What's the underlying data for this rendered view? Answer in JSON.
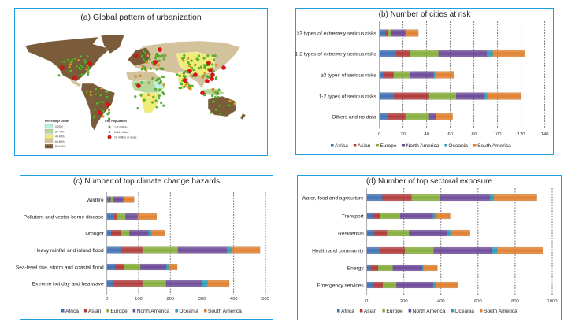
{
  "panel_a": {
    "title": "(a) Global pattern of urbanization",
    "legend_urban": {
      "title": "Percentage Urban",
      "items": [
        {
          "label": "0-20%",
          "color": "#b8f0e6"
        },
        {
          "label": "20-40%",
          "color": "#b5d79a"
        },
        {
          "label": "40-60%",
          "color": "#f0ec7a"
        },
        {
          "label": "60-80%",
          "color": "#d4c29c"
        },
        {
          "label": "80-100%",
          "color": "#7a5c3a"
        }
      ]
    },
    "legend_population": {
      "title": "City Population",
      "items": [
        {
          "label": "1-5 million",
          "color": "#5cc02a"
        },
        {
          "label": "5-10 million",
          "color": "#f0a020"
        },
        {
          "label": "10 million or more",
          "color": "#e81010"
        }
      ]
    }
  },
  "series_colors": {
    "Africa": "#3f6fb3",
    "Asian": "#b03a3a",
    "Europe": "#86ad3c",
    "North America": "#6d4a98",
    "Oceania": "#2f9bb5",
    "South America": "#e07f2f"
  },
  "chart_data": [
    {
      "id": "b",
      "type": "bar",
      "orientation": "horizontal",
      "stacked": true,
      "title": "(b) Number of cities at risk",
      "categories": [
        "≥3 types of extremely serious risks",
        "1-2 types of extremely serious risks",
        "≥3 types of serious risks",
        "1-2 types of serious risks",
        "Others and no data"
      ],
      "xlim": [
        0,
        140
      ],
      "xticks": [
        0,
        20,
        40,
        60,
        80,
        100,
        120,
        140
      ],
      "grid": "vertical dashed",
      "legend": "bottom",
      "series": [
        {
          "name": "Africa",
          "values": [
            5,
            14,
            3,
            12,
            7
          ]
        },
        {
          "name": "Asian",
          "values": [
            2,
            12,
            9,
            30,
            15
          ]
        },
        {
          "name": "Europe",
          "values": [
            3,
            24,
            14,
            23,
            20
          ]
        },
        {
          "name": "North America",
          "values": [
            12,
            41,
            20,
            24,
            6
          ]
        },
        {
          "name": "Oceania",
          "values": [
            0,
            5,
            1,
            2,
            0
          ]
        },
        {
          "name": "South America",
          "values": [
            11,
            27,
            16,
            29,
            14
          ]
        }
      ]
    },
    {
      "id": "c",
      "type": "bar",
      "orientation": "horizontal",
      "stacked": true,
      "title": "(c) Number of top climate change hazards",
      "categories": [
        "Wildfire",
        "Pollutant and vector-borne disease",
        "Drought",
        "Heavy rainfall and inland flood",
        "Sea-level rise, storm and coastal flood",
        "Extreme hot day and heatwave"
      ],
      "xlim": [
        0,
        500
      ],
      "xticks": [
        0,
        100,
        200,
        300,
        400,
        500
      ],
      "grid": "vertical dashed",
      "legend": "bottom",
      "series": [
        {
          "name": "Africa",
          "values": [
            9,
            21,
            14,
            48,
            26,
            18
          ]
        },
        {
          "name": "Asian",
          "values": [
            3,
            10,
            29,
            64,
            29,
            94
          ]
        },
        {
          "name": "Europe",
          "values": [
            9,
            28,
            28,
            112,
            51,
            75
          ]
        },
        {
          "name": "North America",
          "values": [
            29,
            37,
            60,
            155,
            81,
            113
          ]
        },
        {
          "name": "Oceania",
          "values": [
            3,
            2,
            9,
            17,
            7,
            17
          ]
        },
        {
          "name": "South America",
          "values": [
            33,
            59,
            43,
            87,
            28,
            69
          ]
        }
      ]
    },
    {
      "id": "d",
      "type": "bar",
      "orientation": "horizontal",
      "stacked": true,
      "title": "(d) Number of top sectoral exposure",
      "categories": [
        "Water, food and agriculture",
        "Transport",
        "Residential",
        "Health and community",
        "Energy",
        "Emergency services"
      ],
      "xlim": [
        0,
        1000
      ],
      "xticks": [
        0,
        200,
        400,
        600,
        800,
        1000
      ],
      "grid": "vertical dashed",
      "legend": "bottom",
      "series": [
        {
          "name": "Africa",
          "values": [
            84,
            31,
            41,
            72,
            21,
            34
          ]
        },
        {
          "name": "Asian",
          "values": [
            157,
            38,
            68,
            133,
            40,
            52
          ]
        },
        {
          "name": "Europe",
          "values": [
            156,
            111,
            119,
            156,
            79,
            74
          ]
        },
        {
          "name": "North America",
          "values": [
            267,
            177,
            205,
            316,
            159,
            198
          ]
        },
        {
          "name": "Oceania",
          "values": [
            22,
            14,
            20,
            26,
            7,
            14
          ]
        },
        {
          "name": "South America",
          "values": [
            232,
            79,
            104,
            250,
            75,
            121
          ]
        }
      ]
    }
  ]
}
